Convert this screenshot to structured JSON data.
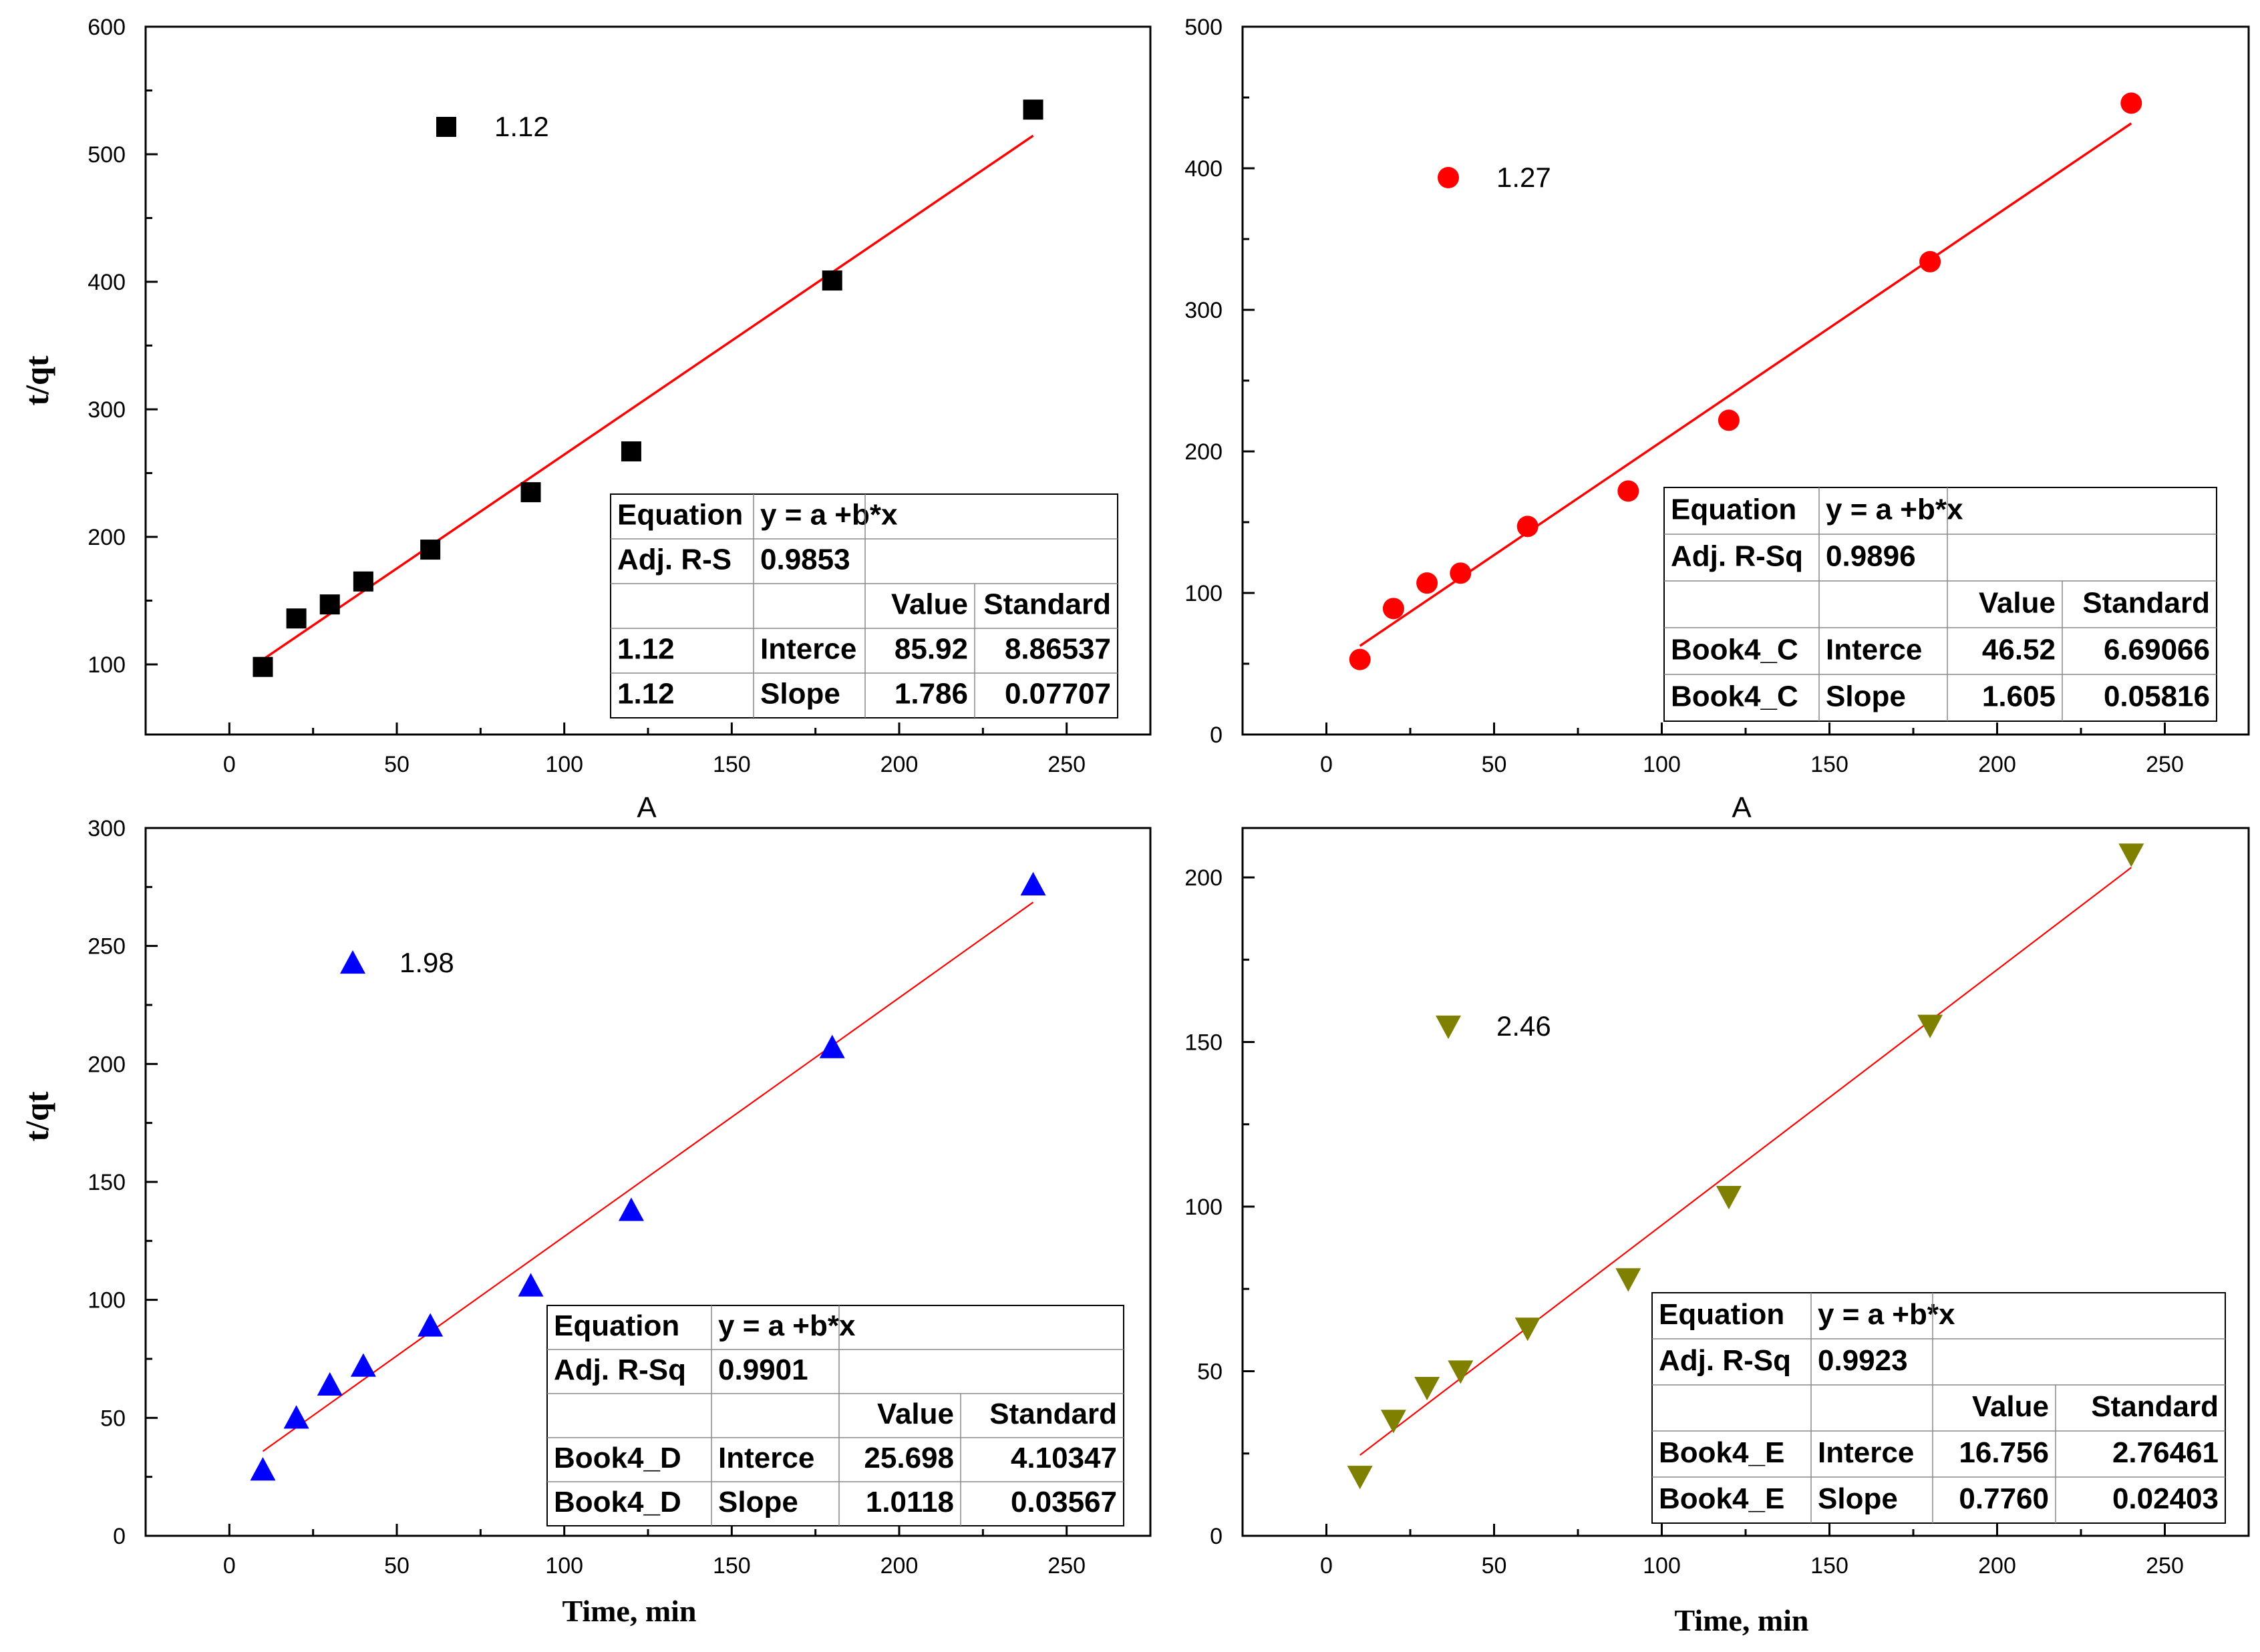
{
  "chart_data": [
    {
      "type": "scatter",
      "series": [
        {
          "name": "1.12",
          "marker": "square",
          "color": "#000000",
          "x": [
            10,
            20,
            30,
            40,
            60,
            90,
            120,
            180,
            240
          ],
          "y": [
            98,
            136,
            147,
            165,
            190,
            235,
            267,
            401,
            535
          ]
        }
      ],
      "fit_line": {
        "color": "#ff0000",
        "intercept": 85.92,
        "slope": 1.786,
        "x_range": [
          10,
          240
        ]
      },
      "xlim": [
        -25,
        275
      ],
      "ylim": [
        45,
        600
      ],
      "xticks": [
        "0",
        "50",
        "100",
        "150",
        "200",
        "250"
      ],
      "yticks": [
        "100",
        "200",
        "300",
        "400",
        "500",
        "600"
      ],
      "ylabel": "t/qt",
      "xlabel": "A",
      "legend_label": "1.12",
      "table": {
        "rows": [
          [
            "Equation",
            "y = a +b*x",
            "",
            ""
          ],
          [
            "Adj. R-S",
            "0.9853",
            "",
            ""
          ],
          [
            "",
            "",
            "Value",
            "Standard"
          ],
          [
            "1.12",
            "Interce",
            "85.92",
            "8.86537"
          ],
          [
            "1.12",
            "Slope",
            "1.786",
            "0.07707"
          ]
        ]
      }
    },
    {
      "type": "scatter",
      "series": [
        {
          "name": "1.27",
          "marker": "circle",
          "color": "#ff0000",
          "x": [
            10,
            20,
            30,
            40,
            60,
            90,
            120,
            180,
            240
          ],
          "y": [
            53,
            89,
            107,
            114,
            147,
            172,
            222,
            334,
            446
          ]
        }
      ],
      "fit_line": {
        "color": "#ff0000",
        "intercept": 46.52,
        "slope": 1.605,
        "x_range": [
          10,
          240
        ]
      },
      "xlim": [
        -25,
        275
      ],
      "ylim": [
        0,
        500
      ],
      "xticks": [
        "0",
        "50",
        "100",
        "150",
        "200",
        "250"
      ],
      "yticks": [
        "0",
        "100",
        "200",
        "300",
        "400",
        "500"
      ],
      "xlabel": "A",
      "legend_label": "1.27",
      "table": {
        "rows": [
          [
            "Equation",
            "y = a +b*x",
            "",
            ""
          ],
          [
            "Adj. R-Sq",
            "0.9896",
            "",
            ""
          ],
          [
            "",
            "",
            "Value",
            "Standard"
          ],
          [
            "Book4_C",
            "Interce",
            "46.52",
            "6.69066"
          ],
          [
            "Book4_C",
            "Slope",
            "1.605",
            "0.05816"
          ]
        ]
      }
    },
    {
      "type": "scatter",
      "series": [
        {
          "name": "1.98",
          "marker": "triangle-up",
          "color": "#0000ff",
          "x": [
            10,
            20,
            30,
            40,
            60,
            90,
            120,
            180,
            240
          ],
          "y": [
            28,
            50,
            64,
            72,
            89,
            106,
            138,
            207,
            276
          ]
        }
      ],
      "fit_line": {
        "color": "#ff0000",
        "intercept": 25.698,
        "slope": 1.0118,
        "x_range": [
          10,
          240
        ]
      },
      "xlim": [
        -25,
        275
      ],
      "ylim": [
        0,
        300
      ],
      "xticks": [
        "0",
        "50",
        "100",
        "150",
        "200",
        "250"
      ],
      "yticks": [
        "0",
        "50",
        "100",
        "150",
        "200",
        "250",
        "300"
      ],
      "ylabel": "t/qt",
      "xlabel": "Time, min",
      "legend_label": "1.98",
      "table": {
        "rows": [
          [
            "Equation",
            "y = a +b*x",
            "",
            ""
          ],
          [
            "Adj. R-Sq",
            "0.9901",
            "",
            ""
          ],
          [
            "",
            "",
            "Value",
            "Standard"
          ],
          [
            "Book4_D",
            "Interce",
            "25.698",
            "4.10347"
          ],
          [
            "Book4_D",
            "Slope",
            "1.0118",
            "0.03567"
          ]
        ]
      }
    },
    {
      "type": "scatter",
      "series": [
        {
          "name": "2.46",
          "marker": "triangle-down",
          "color": "#808000",
          "x": [
            10,
            20,
            30,
            40,
            60,
            90,
            120,
            180,
            240
          ],
          "y": [
            18,
            35,
            45,
            50,
            63,
            78,
            103,
            155,
            207
          ]
        }
      ],
      "fit_line": {
        "color": "#ff0000",
        "intercept": 16.756,
        "slope": 0.776,
        "x_range": [
          10,
          240
        ]
      },
      "xlim": [
        -25,
        275
      ],
      "ylim": [
        0,
        215
      ],
      "xticks": [
        "0",
        "50",
        "100",
        "150",
        "200",
        "250"
      ],
      "yticks": [
        "0",
        "50",
        "100",
        "150",
        "200"
      ],
      "xlabel": "Time, min",
      "legend_label": "2.46",
      "table": {
        "rows": [
          [
            "Equation",
            "y = a +b*x",
            "",
            ""
          ],
          [
            "Adj. R-Sq",
            "0.9923",
            "",
            ""
          ],
          [
            "",
            "",
            "Value",
            "Standard"
          ],
          [
            "Book4_E",
            "Interce",
            "16.756",
            "2.76461"
          ],
          [
            "Book4_E",
            "Slope",
            "0.7760",
            "0.02403"
          ]
        ]
      }
    }
  ]
}
